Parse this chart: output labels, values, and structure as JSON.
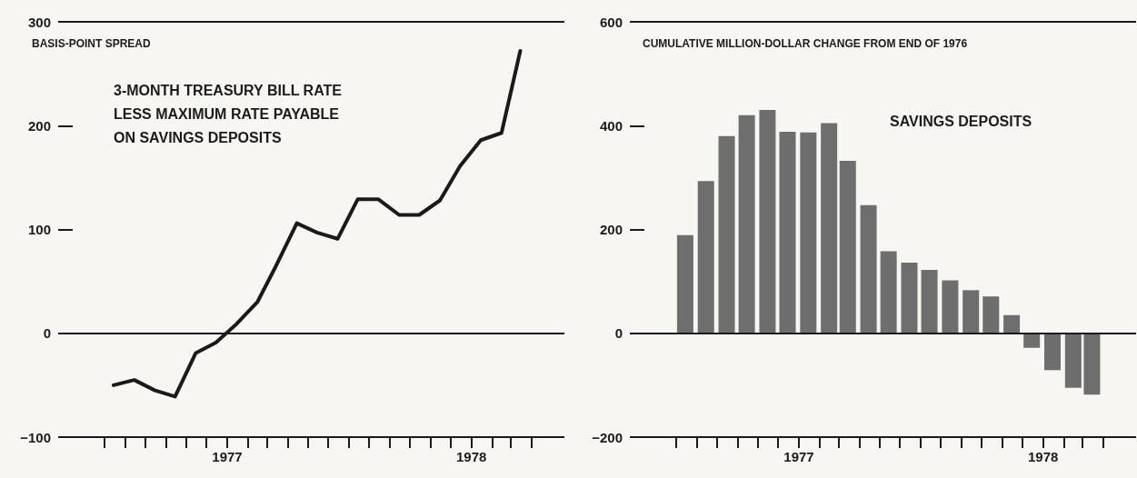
{
  "chart_data": [
    {
      "type": "line",
      "ylabel": "BASIS-POINT SPREAD",
      "x": [
        "1976-07-15",
        "1976-08-15",
        "1976-09-15",
        "1976-10-15",
        "1976-11-15",
        "1976-12-15",
        "1977-01-15",
        "1977-02-15",
        "1977-03-15",
        "1977-04-15",
        "1977-05-15",
        "1977-06-15",
        "1977-07-15",
        "1977-08-15",
        "1977-09-15",
        "1977-10-15",
        "1977-11-15",
        "1977-12-15",
        "1978-01-15",
        "1978-02-15",
        "1978-03-15"
      ],
      "series": [
        {
          "name": "3-MONTH TREASURY BILL RATE LESS MAXIMUM RATE PAYABLE ON SAVINGS DEPOSITS",
          "color": "#1a1a1a",
          "values": [
            -50,
            -45,
            -55,
            -61,
            -19,
            -9,
            9,
            30,
            65,
            106,
            97,
            91,
            129,
            129,
            114,
            114,
            128,
            161,
            186,
            193,
            272
          ]
        }
      ],
      "xlim": [
        "1976-05-15",
        "1978-05-20"
      ],
      "xticks": [
        {
          "value": "1976-07-01",
          "label": null
        },
        {
          "value": "1976-08-01",
          "label": null
        },
        {
          "value": "1976-09-01",
          "label": null
        },
        {
          "value": "1976-10-01",
          "label": null
        },
        {
          "value": "1976-11-01",
          "label": null
        },
        {
          "value": "1976-12-01",
          "label": null
        },
        {
          "value": "1977-01-01",
          "label": "1977"
        },
        {
          "value": "1977-02-01",
          "label": null
        },
        {
          "value": "1977-03-01",
          "label": null
        },
        {
          "value": "1977-04-01",
          "label": null
        },
        {
          "value": "1977-05-01",
          "label": null
        },
        {
          "value": "1977-06-01",
          "label": null
        },
        {
          "value": "1977-07-01",
          "label": null
        },
        {
          "value": "1977-08-01",
          "label": null
        },
        {
          "value": "1977-09-01",
          "label": null
        },
        {
          "value": "1977-10-01",
          "label": null
        },
        {
          "value": "1977-11-01",
          "label": null
        },
        {
          "value": "1977-12-01",
          "label": null
        },
        {
          "value": "1978-01-01",
          "label": "1978"
        },
        {
          "value": "1978-02-01",
          "label": null
        },
        {
          "value": "1978-03-01",
          "label": null
        },
        {
          "value": "1978-04-01",
          "label": null
        }
      ],
      "ylim": [
        -100,
        300
      ],
      "yticks": [
        -100,
        0,
        100,
        200,
        300
      ],
      "grid": false,
      "legend": false,
      "marker": "none",
      "line_style": "solid",
      "ref_lines": [
        {
          "axis": "y",
          "value": 0,
          "color": "#1a1a1a"
        }
      ]
    },
    {
      "type": "bar",
      "ylabel": "CUMULATIVE MILLION-DOLLAR CHANGE FROM END OF 1976",
      "x": [
        "1976-07-15",
        "1976-08-15",
        "1976-09-15",
        "1976-10-15",
        "1976-11-15",
        "1976-12-15",
        "1977-01-15",
        "1977-02-15",
        "1977-03-15",
        "1977-04-15",
        "1977-05-15",
        "1977-06-15",
        "1977-07-15",
        "1977-08-15",
        "1977-09-15",
        "1977-10-15",
        "1977-11-15",
        "1977-12-15",
        "1978-01-15",
        "1978-02-15",
        "1978-03-15"
      ],
      "series": [
        {
          "name": "SAVINGS DEPOSITS",
          "color": "#6e6e6e",
          "values": [
            189,
            293,
            380,
            420,
            430,
            388,
            387,
            405,
            332,
            247,
            158,
            136,
            122,
            102,
            83,
            71,
            35,
            -28,
            -71,
            -105,
            -118
          ]
        }
      ],
      "xlim": [
        "1976-05-15",
        "1978-05-20"
      ],
      "xticks": [
        {
          "value": "1976-07-01",
          "label": null
        },
        {
          "value": "1976-08-01",
          "label": null
        },
        {
          "value": "1976-09-01",
          "label": null
        },
        {
          "value": "1976-10-01",
          "label": null
        },
        {
          "value": "1976-11-01",
          "label": null
        },
        {
          "value": "1976-12-01",
          "label": null
        },
        {
          "value": "1977-01-01",
          "label": "1977"
        },
        {
          "value": "1977-02-01",
          "label": null
        },
        {
          "value": "1977-03-01",
          "label": null
        },
        {
          "value": "1977-04-01",
          "label": null
        },
        {
          "value": "1977-05-01",
          "label": null
        },
        {
          "value": "1977-06-01",
          "label": null
        },
        {
          "value": "1977-07-01",
          "label": null
        },
        {
          "value": "1977-08-01",
          "label": null
        },
        {
          "value": "1977-09-01",
          "label": null
        },
        {
          "value": "1977-10-01",
          "label": null
        },
        {
          "value": "1977-11-01",
          "label": null
        },
        {
          "value": "1977-12-01",
          "label": null
        },
        {
          "value": "1978-01-01",
          "label": "1978"
        },
        {
          "value": "1978-02-01",
          "label": null
        },
        {
          "value": "1978-03-01",
          "label": null
        },
        {
          "value": "1978-04-01",
          "label": null
        }
      ],
      "ylim": [
        -200,
        600
      ],
      "yticks": [
        -200,
        0,
        200,
        400,
        600
      ],
      "grid": false,
      "legend": false,
      "ref_lines": [
        {
          "axis": "y",
          "value": 0,
          "color": "#1a1a1a"
        }
      ]
    }
  ]
}
